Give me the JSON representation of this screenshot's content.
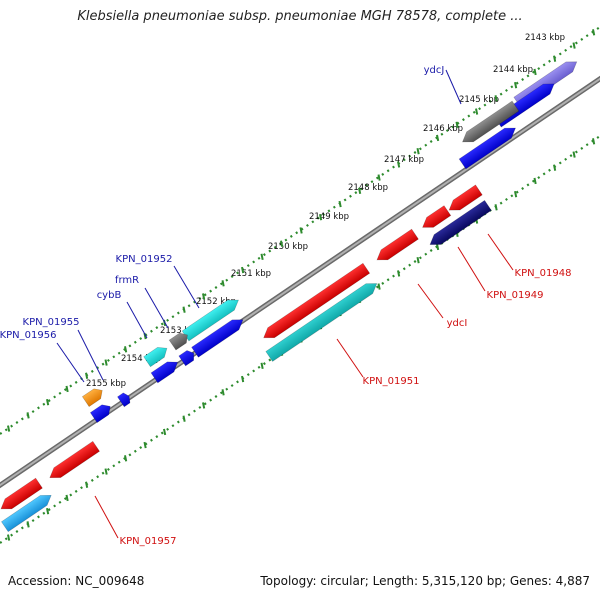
{
  "title": "Klebsiella pneumoniae subsp. pneumoniae MGH 78578, complete ...",
  "footer": {
    "accession": "Accession: NC_009648",
    "summary": "Topology: circular; Length: 5,315,120 bp; Genes: 4,887"
  },
  "colors": {
    "label_forward": "#1a1aa8",
    "label_reverse": "#d01010",
    "backbone": "#8a8a8a",
    "tick": "#2e8b2e"
  },
  "ticks": [
    "2143 kbp",
    "2144 kbp",
    "2145 kbp",
    "2146 kbp",
    "2147 kbp",
    "2148 kbp",
    "2149 kbp",
    "2150 kbp",
    "2151 kbp",
    "2152 kbp",
    "2153 kbp",
    "2154 kbp",
    "2155 kbp"
  ],
  "gene_labels": {
    "forward": [
      "ydcJ",
      "KPN_01952",
      "frmR",
      "cybB",
      "KPN_01955",
      "KPN_01956"
    ],
    "reverse": [
      "KPN_01948",
      "KPN_01949",
      "ydcI",
      "KPN_01951",
      "KPN_01957"
    ]
  }
}
